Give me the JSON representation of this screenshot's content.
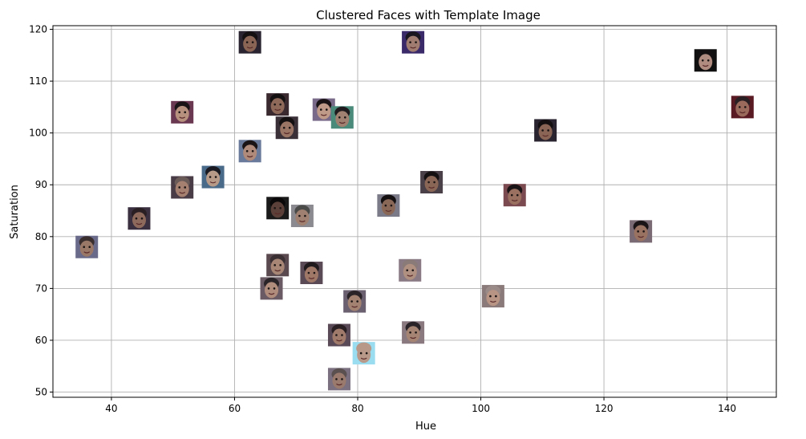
{
  "chart_data": {
    "type": "scatter",
    "title": "Clustered Faces with Template Image",
    "xlabel": "Hue",
    "ylabel": "Saturation",
    "xlim": [
      30.5,
      148
    ],
    "ylim": [
      49,
      120.7
    ],
    "xticks": [
      40,
      60,
      80,
      100,
      120,
      140
    ],
    "yticks": [
      50,
      60,
      70,
      80,
      90,
      100,
      110,
      120
    ],
    "grid": true,
    "marker": "face-thumbnail-icon",
    "points": [
      {
        "x": 36,
        "y": 78,
        "skin": "#9a7868",
        "hair": "#3a2e2e",
        "bg": "#6a6a8a"
      },
      {
        "x": 44.5,
        "y": 83.5,
        "skin": "#8e6a5c",
        "hair": "#2a2024",
        "bg": "#3a3040"
      },
      {
        "x": 51.5,
        "y": 89.5,
        "skin": "#a58070",
        "hair": "#6a5a58",
        "bg": "#4a3c46"
      },
      {
        "x": 51.5,
        "y": 104,
        "skin": "#b8907e",
        "hair": "#1a1416",
        "bg": "#6a3850"
      },
      {
        "x": 56.5,
        "y": 91.5,
        "skin": "#b89a88",
        "hair": "#1a1a22",
        "bg": "#4a6a8a"
      },
      {
        "x": 62.5,
        "y": 96.5,
        "skin": "#b08a7a",
        "hair": "#1a1416",
        "bg": "#6a7a9a"
      },
      {
        "x": 62.5,
        "y": 117.5,
        "skin": "#8a6454",
        "hair": "#141012",
        "bg": "#2a2430"
      },
      {
        "x": 67,
        "y": 105.5,
        "skin": "#8e6858",
        "hair": "#141012",
        "bg": "#3a2a30"
      },
      {
        "x": 68.5,
        "y": 101,
        "skin": "#9a7464",
        "hair": "#141012",
        "bg": "#3a3038"
      },
      {
        "x": 67,
        "y": 85.5,
        "skin": "#5a4038",
        "hair": "#0a0808",
        "bg": "#1a1a1a"
      },
      {
        "x": 71,
        "y": 84,
        "skin": "#a08070",
        "hair": "#4a4a48",
        "bg": "#8a8a90"
      },
      {
        "x": 67,
        "y": 74.5,
        "skin": "#a88676",
        "hair": "#3a3034",
        "bg": "#5a4a50"
      },
      {
        "x": 66,
        "y": 70,
        "skin": "#b08c7c",
        "hair": "#2a2428",
        "bg": "#6a5a64"
      },
      {
        "x": 72.5,
        "y": 73,
        "skin": "#a07868",
        "hair": "#201a1c",
        "bg": "#5a4a56"
      },
      {
        "x": 74.5,
        "y": 104.5,
        "skin": "#c09a88",
        "hair": "#1a1416",
        "bg": "#7a6a8a"
      },
      {
        "x": 77.5,
        "y": 103,
        "skin": "#a08070",
        "hair": "#1e1a1e",
        "bg": "#4a8a7a"
      },
      {
        "x": 79.5,
        "y": 67.5,
        "skin": "#a48272",
        "hair": "#2a2428",
        "bg": "#6a6070"
      },
      {
        "x": 77,
        "y": 61,
        "skin": "#a07a6a",
        "hair": "#2a2024",
        "bg": "#5a4a58"
      },
      {
        "x": 81,
        "y": 57.5,
        "skin": "#b89888",
        "hair": "#b89888",
        "bg": "#9adcf0"
      },
      {
        "x": 77,
        "y": 52.5,
        "skin": "#9a7a6c",
        "hair": "#5a5050",
        "bg": "#7a7080"
      },
      {
        "x": 85,
        "y": 86,
        "skin": "#8a6858",
        "hair": "#141012",
        "bg": "#7a7a88"
      },
      {
        "x": 88.5,
        "y": 73.5,
        "skin": "#b09080",
        "hair": "#8a7a78",
        "bg": "#8a7a84"
      },
      {
        "x": 89,
        "y": 61.5,
        "skin": "#a68474",
        "hair": "#2a2428",
        "bg": "#8a7a80"
      },
      {
        "x": 89,
        "y": 117.5,
        "skin": "#a07c70",
        "hair": "#1a1620",
        "bg": "#3a2a6a"
      },
      {
        "x": 92,
        "y": 90.5,
        "skin": "#8a6656",
        "hair": "#141012",
        "bg": "#4a4048"
      },
      {
        "x": 102,
        "y": 68.5,
        "skin": "#b89484",
        "hair": "#9a8a88",
        "bg": "#8a7a7a"
      },
      {
        "x": 105.5,
        "y": 88,
        "skin": "#9a7060",
        "hair": "#1a1416",
        "bg": "#7a4a50"
      },
      {
        "x": 110.5,
        "y": 100.5,
        "skin": "#8a6454",
        "hair": "#141012",
        "bg": "#2a2430"
      },
      {
        "x": 126,
        "y": 81,
        "skin": "#9a7262",
        "hair": "#1a1416",
        "bg": "#7a6a74"
      },
      {
        "x": 136.5,
        "y": 114,
        "skin": "#b08c80",
        "hair": "#141012",
        "bg": "#101010"
      },
      {
        "x": 142.5,
        "y": 105,
        "skin": "#9a6a5c",
        "hair": "#2a2024",
        "bg": "#5a1a24"
      }
    ]
  }
}
